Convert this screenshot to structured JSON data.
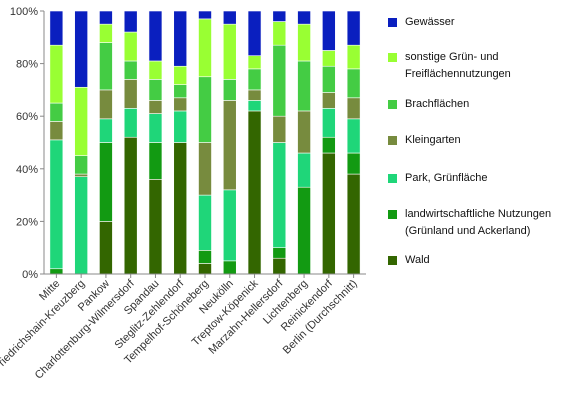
{
  "chart_data": {
    "type": "bar",
    "stacked": "percent",
    "categories": [
      "Mitte",
      "Friedrichshain-Kreuzberg",
      "Pankow",
      "Charlottenburg-Wilmersdorf",
      "Spandau",
      "Steglitz-Zehlendorf",
      "Tempelhof-Schöneberg",
      "Neukölln",
      "Treptow-Köpenick",
      "Marzahn-Hellersdorf",
      "Lichtenberg",
      "Reinickendorf",
      "Berlin (Durchschnitt)"
    ],
    "series": [
      {
        "name": "Wald",
        "color": "#336600",
        "values": [
          0,
          0,
          20,
          52,
          36,
          50,
          4,
          0,
          62,
          6,
          0,
          46,
          38
        ]
      },
      {
        "name": "landwirtschaftliche Nutzungen\n(Grünland und Ackerland)",
        "color": "#129a12",
        "values": [
          2,
          0,
          30,
          0,
          14,
          0,
          5,
          5,
          0,
          4,
          33,
          6,
          8
        ]
      },
      {
        "name": "Park, Grünfläche",
        "color": "#1fd679",
        "values": [
          49,
          37,
          9,
          11,
          11,
          12,
          21,
          27,
          4,
          40,
          13,
          11,
          13
        ]
      },
      {
        "name": "Kleingarten",
        "color": "#778b3e",
        "values": [
          7,
          1,
          11,
          11,
          5,
          5,
          20,
          34,
          4,
          10,
          16,
          6,
          8
        ]
      },
      {
        "name": "Brachflächen",
        "color": "#44cc44",
        "values": [
          7,
          7,
          18,
          7,
          8,
          5,
          25,
          8,
          8,
          27,
          19,
          10,
          11
        ]
      },
      {
        "name": "sonstige Grün- und\nFreiflächennutzungen",
        "color": "#99ff33",
        "values": [
          22,
          26,
          7,
          11,
          7,
          7,
          22,
          21,
          5,
          9,
          14,
          6,
          9
        ]
      },
      {
        "name": "Gewässer",
        "color": "#0a1fbf",
        "values": [
          13,
          29,
          5,
          8,
          19,
          21,
          3,
          5,
          17,
          4,
          5,
          15,
          13
        ]
      }
    ],
    "ylim": [
      0,
      100
    ],
    "yticks": [
      "0%",
      "20%",
      "40%",
      "60%",
      "80%",
      "100%"
    ],
    "grid": false,
    "legend_position": "right",
    "legend_order": [
      "Gewässer",
      "sonstige Grün- und\nFreiflächennutzungen",
      "Brachflächen",
      "Kleingarten",
      "Park, Grünfläche",
      "landwirtschaftliche Nutzungen\n(Grünland und Ackerland)",
      "Wald"
    ]
  }
}
